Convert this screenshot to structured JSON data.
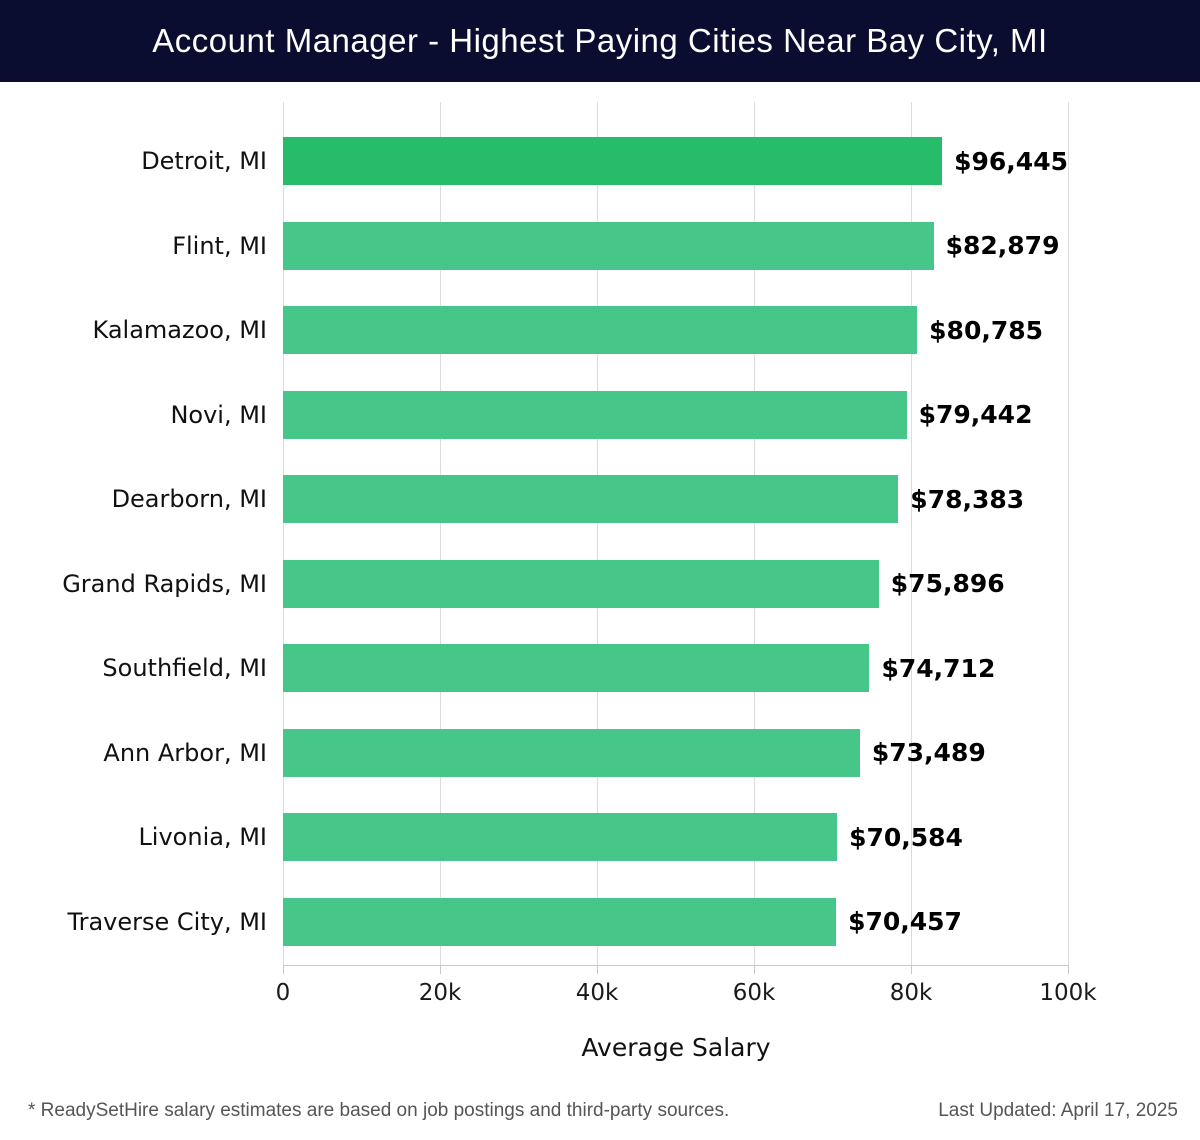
{
  "header": {
    "title": "Account Manager - Highest Paying Cities Near Bay City, MI"
  },
  "chart_data": {
    "type": "bar",
    "orientation": "horizontal",
    "title": "Account Manager - Highest Paying Cities Near Bay City, MI",
    "categories": [
      "Detroit, MI",
      "Flint, MI",
      "Kalamazoo, MI",
      "Novi, MI",
      "Dearborn, MI",
      "Grand Rapids, MI",
      "Southfield, MI",
      "Ann Arbor, MI",
      "Livonia, MI",
      "Traverse City, MI"
    ],
    "values": [
      96445,
      82879,
      80785,
      79442,
      78383,
      75896,
      74712,
      73489,
      70584,
      70457
    ],
    "value_labels": [
      "$96,445",
      "$82,879",
      "$80,785",
      "$79,442",
      "$78,383",
      "$75,896",
      "$74,712",
      "$73,489",
      "$70,584",
      "$70,457"
    ],
    "xlabel": "Average Salary",
    "ylabel": "",
    "xlim": [
      0,
      100000
    ],
    "x_ticks": [
      "0",
      "20k",
      "40k",
      "60k",
      "80k",
      "100k"
    ],
    "x_tick_values": [
      0,
      20000,
      40000,
      60000,
      80000,
      100000
    ],
    "grid": true,
    "legend": false,
    "highlight_index": 0
  },
  "footer": {
    "disclaimer": "* ReadySetHire salary estimates are based on job postings and third-party sources.",
    "last_updated": "Last Updated: April 17, 2025"
  },
  "colors": {
    "header_bg": "#0a0d30",
    "header_text": "#ffffff",
    "bar": "#46c688",
    "bar_highlight": "#26bc69",
    "grid": "#dcdcdc",
    "axis": "#c9c9c9",
    "label_text": "#111111",
    "value_text": "#000000",
    "footer_text": "#555555"
  }
}
